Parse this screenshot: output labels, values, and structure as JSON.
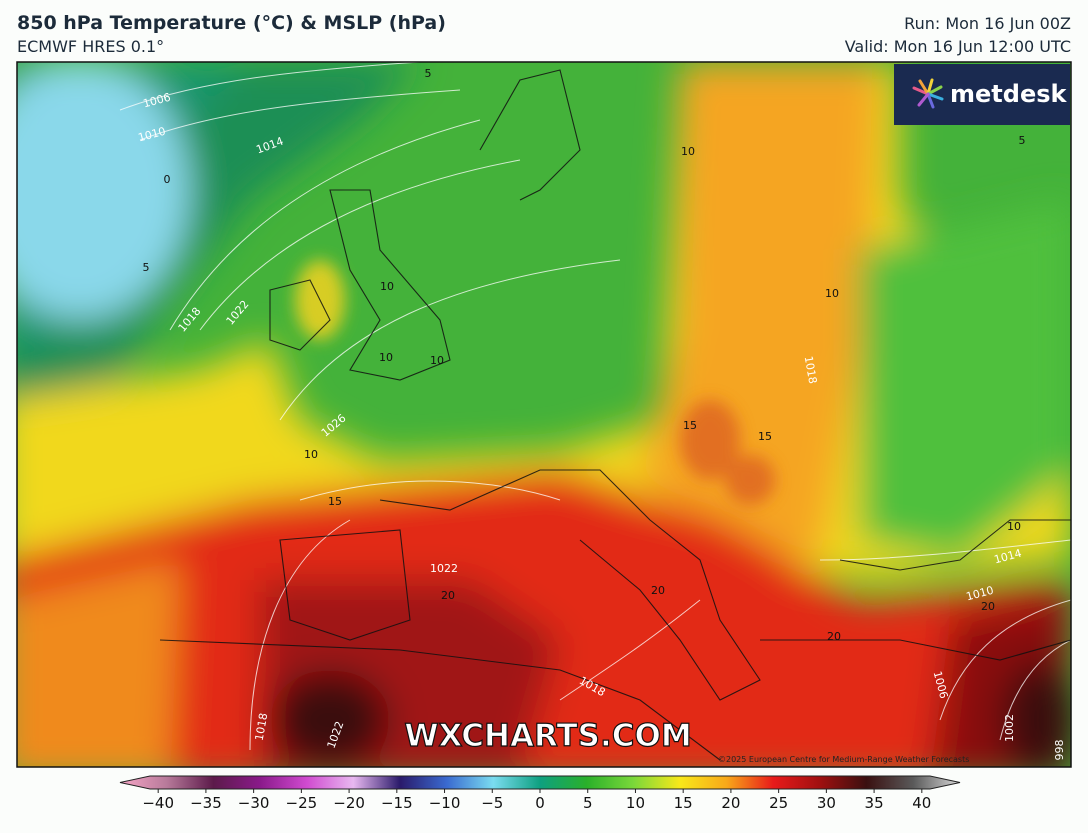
{
  "header": {
    "title": "850 hPa Temperature (°C) & MSLP (hPa)",
    "subtitle": "ECMWF HRES 0.1°",
    "run": "Run: Mon 16 Jun 00Z",
    "valid": "Valid: Mon 16 Jun 12:00 UTC"
  },
  "logo": "metdesk",
  "watermark": "WXCHARTS.COM",
  "copyright": "©2025 European Centre for Medium-Range Weather Forecasts",
  "map_labels": [
    "1006",
    "1010",
    "1014",
    "0",
    "5",
    "1018",
    "1022",
    "10",
    "10",
    "10",
    "10",
    "1026",
    "10",
    "1018",
    "15",
    "15",
    "15",
    "10",
    "1014",
    "1010",
    "20",
    "1022",
    "20",
    "20",
    "20",
    "1018",
    "1006",
    "1002",
    "1018",
    "1022",
    "5",
    "5",
    "10",
    "998"
  ],
  "colorbar": {
    "colors": [
      "#f7a6c6",
      "#b77a9a",
      "#5c1a4a",
      "#8a1a8a",
      "#d04ad0",
      "#e8b8f0",
      "#2a1a6a",
      "#3a6ad0",
      "#7adcf0",
      "#0ea080",
      "#2ab02a",
      "#7ad83a",
      "#f8e81a",
      "#f8a81a",
      "#e81a1a",
      "#a01010",
      "#3a1010",
      "#5a5a5a",
      "#d8d8d8"
    ],
    "ticks": [
      {
        "value": -40,
        "label": "−40"
      },
      {
        "value": -35,
        "label": "−35"
      },
      {
        "value": -30,
        "label": "−30"
      },
      {
        "value": -25,
        "label": "−25"
      },
      {
        "value": -20,
        "label": "−20"
      },
      {
        "value": -15,
        "label": "−15"
      },
      {
        "value": -10,
        "label": "−10"
      },
      {
        "value": -5,
        "label": "−5"
      },
      0,
      5,
      10,
      15,
      20,
      25,
      30,
      35,
      40
    ],
    "lim": [
      -44,
      44
    ]
  }
}
